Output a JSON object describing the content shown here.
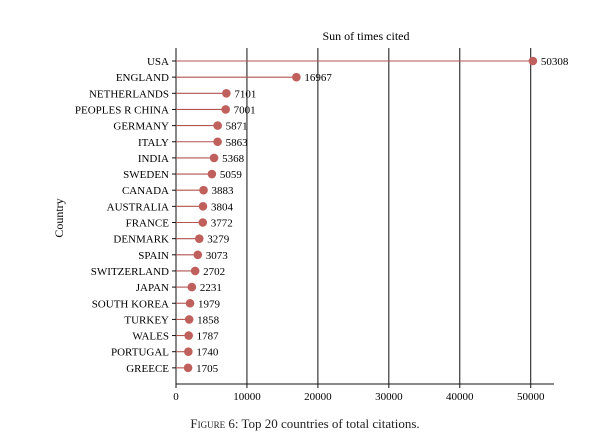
{
  "chart_data": {
    "type": "lollipop",
    "title": "Sun of times cited",
    "ylabel": "Country",
    "xlim": [
      0,
      53000
    ],
    "xticks": [
      0,
      10000,
      20000,
      30000,
      40000,
      50000
    ],
    "categories": [
      "USA",
      "ENGLAND",
      "NETHERLANDS",
      "PEOPLES R CHINA",
      "GERMANY",
      "ITALY",
      "INDIA",
      "SWEDEN",
      "CANADA",
      "AUSTRALIA",
      "FRANCE",
      "DENMARK",
      "SPAIN",
      "SWITZERLAND",
      "JAPAN",
      "SOUTH KOREA",
      "TURKEY",
      "WALES",
      "PORTUGAL",
      "GREECE"
    ],
    "values": [
      50308,
      16967,
      7101,
      7001,
      5871,
      5863,
      5368,
      5059,
      3883,
      3804,
      3772,
      3279,
      3073,
      2702,
      2231,
      1979,
      1858,
      1787,
      1740,
      1705
    ],
    "marker_color": "#c0605c",
    "line_color": "#b05550"
  },
  "caption": {
    "label": "Figure 6:",
    "text": "Top 20 countries of total citations."
  }
}
